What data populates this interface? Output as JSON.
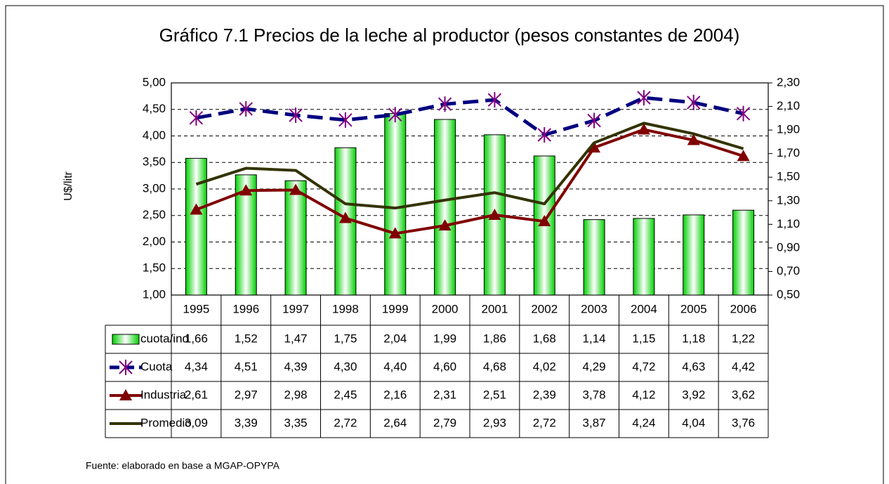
{
  "chart_data": {
    "type": "combo",
    "title": "Gráfico 7.1 Precios de la leche al productor (pesos constantes de 2004)",
    "y_label": "U$/litr",
    "source": "Fuente: elaborado en base a MGAP-OPYPA",
    "categories": [
      "1995",
      "1996",
      "1997",
      "1998",
      "1999",
      "2000",
      "2001",
      "2002",
      "2003",
      "2004",
      "2005",
      "2006"
    ],
    "series": [
      {
        "name": "cuota/ind",
        "type": "bar",
        "axis": "y2",
        "color": "#00e000",
        "values": [
          1.66,
          1.52,
          1.47,
          1.75,
          2.04,
          1.99,
          1.86,
          1.68,
          1.14,
          1.15,
          1.18,
          1.22
        ],
        "value_labels": [
          "1,66",
          "1,52",
          "1,47",
          "1,75",
          "2,04",
          "1,99",
          "1,86",
          "1,68",
          "1,14",
          "1,15",
          "1,18",
          "1,22"
        ]
      },
      {
        "name": "Cuota",
        "type": "line",
        "color": "#000080",
        "marker": "asterisk",
        "marker_color": "#800080",
        "dashed": true,
        "values": [
          4.34,
          4.51,
          4.39,
          4.3,
          4.4,
          4.6,
          4.68,
          4.02,
          4.29,
          4.72,
          4.63,
          4.42
        ],
        "value_labels": [
          "4,34",
          "4,51",
          "4,39",
          "4,30",
          "4,40",
          "4,60",
          "4,68",
          "4,02",
          "4,29",
          "4,72",
          "4,63",
          "4,42"
        ]
      },
      {
        "name": "Industria",
        "type": "line",
        "color": "#800000",
        "marker": "triangle",
        "marker_color": "#800000",
        "values": [
          2.61,
          2.97,
          2.98,
          2.45,
          2.16,
          2.31,
          2.51,
          2.39,
          3.78,
          4.12,
          3.92,
          3.62
        ],
        "value_labels": [
          "2,61",
          "2,97",
          "2,98",
          "2,45",
          "2,16",
          "2,31",
          "2,51",
          "2,39",
          "3,78",
          "4,12",
          "3,92",
          "3,62"
        ]
      },
      {
        "name": "Promedio",
        "type": "line",
        "color": "#333300",
        "values": [
          3.09,
          3.39,
          3.35,
          2.72,
          2.64,
          2.79,
          2.93,
          2.72,
          3.87,
          4.24,
          4.04,
          3.76
        ],
        "value_labels": [
          "3,09",
          "3,39",
          "3,35",
          "2,72",
          "2,64",
          "2,79",
          "2,93",
          "2,72",
          "3,87",
          "4,24",
          "4,04",
          "3,76"
        ]
      }
    ],
    "ylim": [
      1,
      5
    ],
    "yticks": [
      {
        "value": 1,
        "label": "1,00"
      },
      {
        "value": 1.5,
        "label": "1,50"
      },
      {
        "value": 2,
        "label": "2,00"
      },
      {
        "value": 2.5,
        "label": "2,50"
      },
      {
        "value": 3,
        "label": "3,00"
      },
      {
        "value": 3.5,
        "label": "3,50"
      },
      {
        "value": 4,
        "label": "4,00"
      },
      {
        "value": 4.5,
        "label": "4,50"
      },
      {
        "value": 5,
        "label": "5,00"
      }
    ],
    "y2lim": [
      0.5,
      2.3
    ],
    "y2ticks": [
      {
        "value": 0.5,
        "label": "0,50"
      },
      {
        "value": 0.7,
        "label": "0,70"
      },
      {
        "value": 0.9,
        "label": "0,90"
      },
      {
        "value": 1.1,
        "label": "1,10"
      },
      {
        "value": 1.3,
        "label": "1,30"
      },
      {
        "value": 1.5,
        "label": "1,50"
      },
      {
        "value": 1.7,
        "label": "1,70"
      },
      {
        "value": 1.9,
        "label": "1,90"
      },
      {
        "value": 2.1,
        "label": "2,10"
      },
      {
        "value": 2.3,
        "label": "2,30"
      }
    ],
    "grid": true,
    "data_table": true
  }
}
